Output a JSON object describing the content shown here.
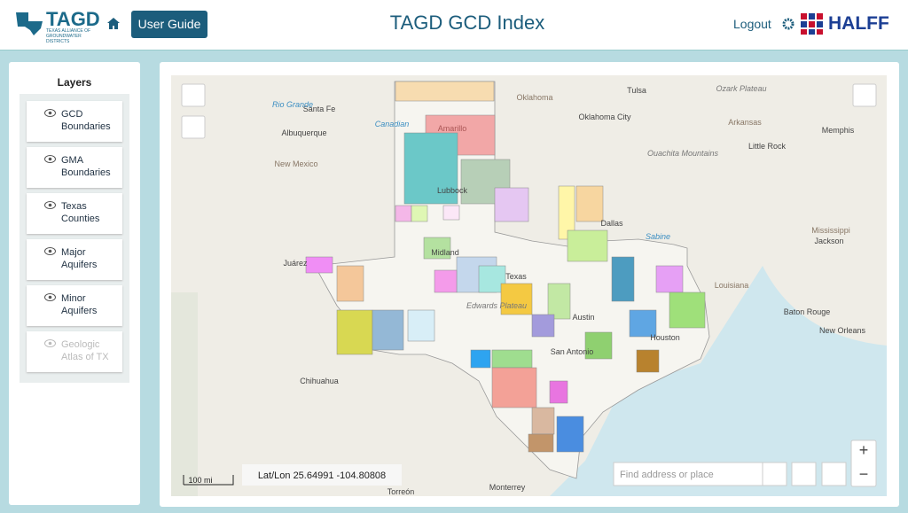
{
  "header": {
    "logo": "TAGD",
    "logo_subtitle": "TEXAS ALLIANCE OF GROUNDWATER DISTRICTS",
    "user_guide": "User Guide",
    "title": "TAGD GCD Index",
    "logout": "Logout",
    "partner": "HALFF"
  },
  "layers": {
    "title": "Layers",
    "items": [
      "GCD Boundaries",
      "GMA Boundaries",
      "Texas Counties",
      "Major Aquifers",
      "Minor Aquifers",
      "Geologic Atlas of TX"
    ]
  },
  "map": {
    "labels": [
      "Santa Fe",
      "Albuquerque",
      "New Mexico",
      "Amarillo",
      "Lubbock",
      "Midland",
      "Texas",
      "Juárez",
      "Edwards Plateau",
      "Austin",
      "San Antonio",
      "Houston",
      "Dallas",
      "Oklahoma",
      "Tulsa",
      "Oklahoma City",
      "Arkansas",
      "Ozark Plateau",
      "Memphis",
      "Little Rock",
      "Ouachita Mountains",
      "Mississippi",
      "Jackson",
      "Louisiana",
      "Baton Rouge",
      "New Orleans",
      "Chihuahua",
      "Monterrey",
      "Torreón",
      "Canadian",
      "Sabine",
      "Rio Grande"
    ],
    "scale": "100 mi",
    "coordinates": "Lat/Lon 25.64991 -104.80808",
    "search_placeholder": "Find address or place"
  }
}
